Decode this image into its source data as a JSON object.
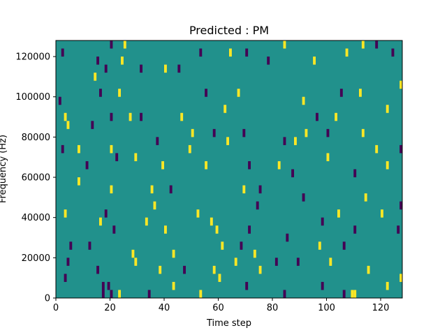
{
  "chart_data": {
    "type": "heatmap",
    "title": "Predicted : PM",
    "xlabel": "Time step",
    "ylabel": "Frequency (Hz)",
    "xlim": [
      0,
      128
    ],
    "ylim": [
      0,
      128000
    ],
    "grid": false,
    "x_ticks": [
      0,
      20,
      40,
      60,
      80,
      100,
      120
    ],
    "y_ticks": [
      0,
      20000,
      40000,
      60000,
      80000,
      100000,
      120000
    ],
    "x_tick_labels": [
      "0",
      "20",
      "40",
      "60",
      "80",
      "100",
      "120"
    ],
    "y_tick_labels": [
      "0",
      "20000",
      "40000",
      "60000",
      "80000",
      "100000",
      "120000"
    ],
    "colors": {
      "background": "#21918c",
      "low": "#440154",
      "high": "#fde725"
    },
    "background_value": 0,
    "cell_height": 4000,
    "cells": [
      {
        "t": 2,
        "f": 120000,
        "v": -1
      },
      {
        "t": 20,
        "f": 124000,
        "v": -1
      },
      {
        "t": 25,
        "f": 124000,
        "v": 1
      },
      {
        "t": 24,
        "f": 116000,
        "v": 1
      },
      {
        "t": 15,
        "f": 116000,
        "v": -1
      },
      {
        "t": 18,
        "f": 112000,
        "v": -1
      },
      {
        "t": 14,
        "f": 108000,
        "v": 1
      },
      {
        "t": 31,
        "f": 112000,
        "v": -1
      },
      {
        "t": 40,
        "f": 112000,
        "v": 1
      },
      {
        "t": 45,
        "f": 112000,
        "v": -1
      },
      {
        "t": 53,
        "f": 120000,
        "v": -1
      },
      {
        "t": 64,
        "f": 120000,
        "v": 1
      },
      {
        "t": 70,
        "f": 120000,
        "v": -1
      },
      {
        "t": 78,
        "f": 116000,
        "v": -1
      },
      {
        "t": 84,
        "f": 124000,
        "v": 1
      },
      {
        "t": 95,
        "f": 116000,
        "v": 1
      },
      {
        "t": 107,
        "f": 120000,
        "v": 1
      },
      {
        "t": 113,
        "f": 124000,
        "v": 1
      },
      {
        "t": 118,
        "f": 124000,
        "v": -1
      },
      {
        "t": 124,
        "f": 120000,
        "v": -1
      },
      {
        "t": 127,
        "f": 104000,
        "v": 1
      },
      {
        "t": 1,
        "f": 96000,
        "v": -1
      },
      {
        "t": 16,
        "f": 100000,
        "v": -1
      },
      {
        "t": 23,
        "f": 100000,
        "v": 1
      },
      {
        "t": 55,
        "f": 100000,
        "v": -1
      },
      {
        "t": 67,
        "f": 100000,
        "v": 1
      },
      {
        "t": 91,
        "f": 96000,
        "v": 1
      },
      {
        "t": 105,
        "f": 100000,
        "v": -1
      },
      {
        "t": 112,
        "f": 100000,
        "v": 1
      },
      {
        "t": 122,
        "f": 92000,
        "v": 1
      },
      {
        "t": 3,
        "f": 88000,
        "v": 1
      },
      {
        "t": 20,
        "f": 88000,
        "v": -1
      },
      {
        "t": 27,
        "f": 88000,
        "v": 1
      },
      {
        "t": 31,
        "f": 88000,
        "v": -1
      },
      {
        "t": 46,
        "f": 88000,
        "v": 1
      },
      {
        "t": 62,
        "f": 92000,
        "v": 1
      },
      {
        "t": 96,
        "f": 88000,
        "v": -1
      },
      {
        "t": 103,
        "f": 88000,
        "v": 1
      },
      {
        "t": 4,
        "f": 84000,
        "v": 1
      },
      {
        "t": 13,
        "f": 84000,
        "v": -1
      },
      {
        "t": 50,
        "f": 80000,
        "v": 1
      },
      {
        "t": 58,
        "f": 80000,
        "v": -1
      },
      {
        "t": 69,
        "f": 80000,
        "v": -1
      },
      {
        "t": 92,
        "f": 80000,
        "v": 1
      },
      {
        "t": 100,
        "f": 80000,
        "v": -1
      },
      {
        "t": 113,
        "f": 80000,
        "v": 1
      },
      {
        "t": 2,
        "f": 72000,
        "v": -1
      },
      {
        "t": 8,
        "f": 72000,
        "v": 1
      },
      {
        "t": 20,
        "f": 72000,
        "v": 1
      },
      {
        "t": 37,
        "f": 76000,
        "v": -1
      },
      {
        "t": 49,
        "f": 72000,
        "v": 1
      },
      {
        "t": 63,
        "f": 76000,
        "v": 1
      },
      {
        "t": 84,
        "f": 76000,
        "v": -1
      },
      {
        "t": 88,
        "f": 76000,
        "v": 1
      },
      {
        "t": 118,
        "f": 72000,
        "v": 1
      },
      {
        "t": 127,
        "f": 72000,
        "v": -1
      },
      {
        "t": 11,
        "f": 64000,
        "v": -1
      },
      {
        "t": 22,
        "f": 68000,
        "v": -1
      },
      {
        "t": 29,
        "f": 68000,
        "v": 1
      },
      {
        "t": 39,
        "f": 64000,
        "v": 1
      },
      {
        "t": 55,
        "f": 64000,
        "v": 1
      },
      {
        "t": 71,
        "f": 64000,
        "v": -1
      },
      {
        "t": 82,
        "f": 64000,
        "v": 1
      },
      {
        "t": 87,
        "f": 60000,
        "v": -1
      },
      {
        "t": 100,
        "f": 68000,
        "v": 1
      },
      {
        "t": 110,
        "f": 60000,
        "v": -1
      },
      {
        "t": 122,
        "f": 64000,
        "v": 1
      },
      {
        "t": 8,
        "f": 56000,
        "v": 1
      },
      {
        "t": 20,
        "f": 52000,
        "v": 1
      },
      {
        "t": 35,
        "f": 52000,
        "v": 1
      },
      {
        "t": 42,
        "f": 52000,
        "v": -1
      },
      {
        "t": 69,
        "f": 52000,
        "v": 1
      },
      {
        "t": 75,
        "f": 52000,
        "v": -1
      },
      {
        "t": 91,
        "f": 48000,
        "v": -1
      },
      {
        "t": 114,
        "f": 48000,
        "v": 1
      },
      {
        "t": 127,
        "f": 44000,
        "v": -1
      },
      {
        "t": 3,
        "f": 40000,
        "v": 1
      },
      {
        "t": 18,
        "f": 40000,
        "v": -1
      },
      {
        "t": 36,
        "f": 44000,
        "v": 1
      },
      {
        "t": 52,
        "f": 40000,
        "v": 1
      },
      {
        "t": 74,
        "f": 44000,
        "v": -1
      },
      {
        "t": 104,
        "f": 40000,
        "v": 1
      },
      {
        "t": 120,
        "f": 40000,
        "v": 1
      },
      {
        "t": 16,
        "f": 36000,
        "v": 1
      },
      {
        "t": 21,
        "f": 32000,
        "v": -1
      },
      {
        "t": 33,
        "f": 36000,
        "v": 1
      },
      {
        "t": 40,
        "f": 32000,
        "v": 1
      },
      {
        "t": 57,
        "f": 36000,
        "v": 1
      },
      {
        "t": 59,
        "f": 32000,
        "v": 1
      },
      {
        "t": 71,
        "f": 32000,
        "v": -1
      },
      {
        "t": 85,
        "f": 28000,
        "v": -1
      },
      {
        "t": 98,
        "f": 36000,
        "v": -1
      },
      {
        "t": 110,
        "f": 32000,
        "v": -1
      },
      {
        "t": 126,
        "f": 32000,
        "v": -1
      },
      {
        "t": 5,
        "f": 24000,
        "v": -1
      },
      {
        "t": 12,
        "f": 24000,
        "v": -1
      },
      {
        "t": 28,
        "f": 20000,
        "v": 1
      },
      {
        "t": 43,
        "f": 20000,
        "v": 1
      },
      {
        "t": 61,
        "f": 24000,
        "v": 1
      },
      {
        "t": 68,
        "f": 24000,
        "v": -1
      },
      {
        "t": 73,
        "f": 20000,
        "v": 1
      },
      {
        "t": 81,
        "f": 16000,
        "v": -1
      },
      {
        "t": 97,
        "f": 24000,
        "v": 1
      },
      {
        "t": 106,
        "f": 24000,
        "v": -1
      },
      {
        "t": 4,
        "f": 16000,
        "v": -1
      },
      {
        "t": 15,
        "f": 12000,
        "v": -1
      },
      {
        "t": 29,
        "f": 16000,
        "v": 1
      },
      {
        "t": 38,
        "f": 12000,
        "v": 1
      },
      {
        "t": 47,
        "f": 12000,
        "v": -1
      },
      {
        "t": 58,
        "f": 12000,
        "v": 1
      },
      {
        "t": 60,
        "f": 8000,
        "v": 1
      },
      {
        "t": 66,
        "f": 16000,
        "v": 1
      },
      {
        "t": 75,
        "f": 12000,
        "v": 1
      },
      {
        "t": 89,
        "f": 16000,
        "v": -1
      },
      {
        "t": 101,
        "f": 16000,
        "v": 1
      },
      {
        "t": 115,
        "f": 12000,
        "v": 1
      },
      {
        "t": 127,
        "f": 8000,
        "v": 1
      },
      {
        "t": 3,
        "f": 8000,
        "v": -1
      },
      {
        "t": 17,
        "f": 4000,
        "v": -1
      },
      {
        "t": 19,
        "f": 4000,
        "v": -1
      },
      {
        "t": 17,
        "f": 0,
        "v": -1
      },
      {
        "t": 20,
        "f": 0,
        "v": -1
      },
      {
        "t": 23,
        "f": 0,
        "v": 1
      },
      {
        "t": 34,
        "f": 0,
        "v": -1
      },
      {
        "t": 43,
        "f": 4000,
        "v": 1
      },
      {
        "t": 53,
        "f": 0,
        "v": 1
      },
      {
        "t": 70,
        "f": 4000,
        "v": -1
      },
      {
        "t": 84,
        "f": 0,
        "v": -1
      },
      {
        "t": 98,
        "f": 4000,
        "v": -1
      },
      {
        "t": 106,
        "f": 0,
        "v": -1
      },
      {
        "t": 109,
        "f": 0,
        "v": 1
      },
      {
        "t": 110,
        "f": 0,
        "v": 1
      },
      {
        "t": 122,
        "f": 4000,
        "v": 1
      }
    ]
  }
}
